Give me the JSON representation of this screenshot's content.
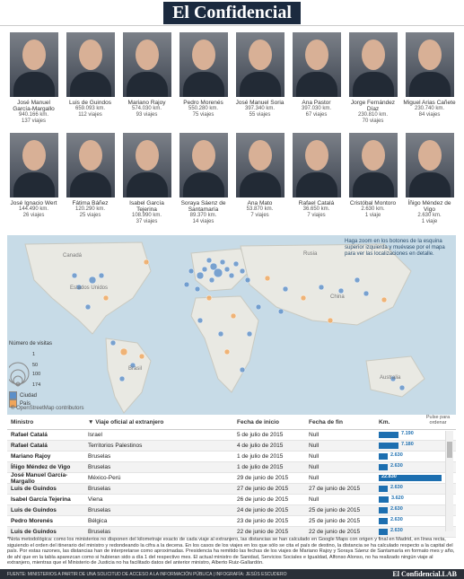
{
  "header": {
    "logo": "El Confidencial"
  },
  "ministers_row1": [
    {
      "name": "José Manuel García-Margallo",
      "km": "940.166 km.",
      "trips": "137 viajes"
    },
    {
      "name": "Luis de Guindos",
      "km": "659.093 km.",
      "trips": "112 viajes"
    },
    {
      "name": "Mariano Rajoy",
      "km": "574.030 km.",
      "trips": "93 viajes"
    },
    {
      "name": "Pedro Morenés",
      "km": "550.280 km.",
      "trips": "75 viajes"
    },
    {
      "name": "José Manuel Soria",
      "km": "397.340 km.",
      "trips": "55 viajes"
    },
    {
      "name": "Ana Pastor",
      "km": "397.030 km.",
      "trips": "67 viajes"
    },
    {
      "name": "Jorge Fernández Díaz",
      "km": "230.810 km.",
      "trips": "70 viajes"
    },
    {
      "name": "Miguel Arias Cañete",
      "km": "230.740 km.",
      "trips": "84 viajes"
    }
  ],
  "ministers_row2": [
    {
      "name": "José Ignacio Wert",
      "km": "144.490 km.",
      "trips": "26 viajes"
    },
    {
      "name": "Fátima Báñez",
      "km": "120.290 km.",
      "trips": "25 viajes"
    },
    {
      "name": "Isabel García Tejerina",
      "km": "108.990 km.",
      "trips": "37 viajes"
    },
    {
      "name": "Soraya Sáenz de Santamaría",
      "km": "89.370 km.",
      "trips": "14 viajes"
    },
    {
      "name": "Ana Mato",
      "km": "53.870 km.",
      "trips": "7 viajes"
    },
    {
      "name": "Rafael Catalá",
      "km": "36.650 km.",
      "trips": "7 viajes"
    },
    {
      "name": "Cristóbal Montoro",
      "km": "2.630 km.",
      "trips": "1 viaje"
    },
    {
      "name": "Íñigo Méndez de Vigo",
      "km": "2.630 km.",
      "trips": "1 viaje"
    }
  ],
  "map": {
    "hint": "Haga zoom en los botones de la esquina superior izquierda y muévase por el mapa para ver las localizaciones en detalle.",
    "legend_title": "Número de visitas",
    "legend_values": [
      "1",
      "50",
      "100",
      "174"
    ],
    "legend_city": "Ciudad",
    "legend_country": "País",
    "attribution": "© OpenStreetMap contributors",
    "labels": [
      "Canadá",
      "Estados Unidos",
      "Brasil",
      "Australia",
      "China",
      "Rusia"
    ],
    "colors": {
      "city": "#5b8fc9",
      "country": "#f0a55a",
      "land": "#e9e9e3",
      "water": "#c7dbe7"
    }
  },
  "table": {
    "headers": [
      "Ministro",
      "Viaje oficial al extranjero",
      "Fecha de inicio",
      "Fecha de fin",
      "Km."
    ],
    "sort_note": "Pulse para ordenar",
    "max_km": 22830,
    "rows": [
      {
        "m": "Rafael Catalá",
        "v": "Israel",
        "i": "5 de julio de 2015",
        "f": "Null",
        "km": 7190,
        "kml": "7.190"
      },
      {
        "m": "Rafael Catalá",
        "v": "Territorios Palestinos",
        "i": "4 de julio de 2015",
        "f": "Null",
        "km": 7180,
        "kml": "7.180"
      },
      {
        "m": "Mariano Rajoy",
        "v": "Bruselas",
        "i": "1 de julio de 2015",
        "f": "Null",
        "km": 2630,
        "kml": "2.630"
      },
      {
        "m": "Íñigo Méndez de Vigo",
        "v": "Bruselas",
        "i": "1 de julio de 2015",
        "f": "Null",
        "km": 2630,
        "kml": "2.630"
      },
      {
        "m": "José Manuel García-Margallo",
        "v": "México-Perú",
        "i": "29 de junio de 2015",
        "f": "Null",
        "km": 22830,
        "kml": "22.830"
      },
      {
        "m": "Luis de Guindos",
        "v": "Bruselas",
        "i": "27 de junio de 2015",
        "f": "27 de junio de 2015",
        "km": 2630,
        "kml": "2.630"
      },
      {
        "m": "Isabel García Tejerina",
        "v": "Viena",
        "i": "26 de junio de 2015",
        "f": "Null",
        "km": 3620,
        "kml": "3.620"
      },
      {
        "m": "Luis de Guindos",
        "v": "Bruselas",
        "i": "24 de junio de 2015",
        "f": "25 de junio de 2015",
        "km": 2630,
        "kml": "2.630"
      },
      {
        "m": "Pedro Morenés",
        "v": "Bélgica",
        "i": "23 de junio de 2015",
        "f": "25 de junio de 2015",
        "km": 2630,
        "kml": "2.630"
      },
      {
        "m": "Luis de Guindos",
        "v": "Bruselas",
        "i": "22 de junio de 2015",
        "f": "22 de junio de 2015",
        "km": 2630,
        "kml": "2.630"
      }
    ]
  },
  "note": "*Nota metodológica: como los ministerios no disponen del kilometraje exacto de cada viaje al extranjero, las distancias se han calculado en Google Maps con origen y final en Madrid, en línea recta, siguiendo el orden del itinerario del ministro y redondeando la cifra a la decena. En los casos de los viajes en los que sólo se cita el país de destino, la distancia se ha calculado respecto a la capital del país. Por estas razones, las distancias han de interpretarse como aproximadas. Presidencia ha remitido las fechas de los viajes de Mariano Rajoy y Soraya Sáenz de Santamaría en formato mes y año, de ahí que en la tabla aparezcan como si hubieran sido a día 1 del respectivo mes. El actual ministro de Sanidad, Servicios Sociales e Igualdad, Alfonso Alonso, no ha realizado ningún viaje al extranjero, mientras que el Ministerio de Justicia no ha facilitado datos del anterior ministro, Alberto Ruiz-Gallardón.",
  "footer": {
    "source": "FUENTE: MINISTERIOS A PARTIR DE UNA SOLICITUD DE ACCESO A LA INFORMACIÓN PÚBLICA | INFOGRAFÍA: JESÚS ESCUDERO",
    "logo": "El Confidencial.LAB"
  }
}
